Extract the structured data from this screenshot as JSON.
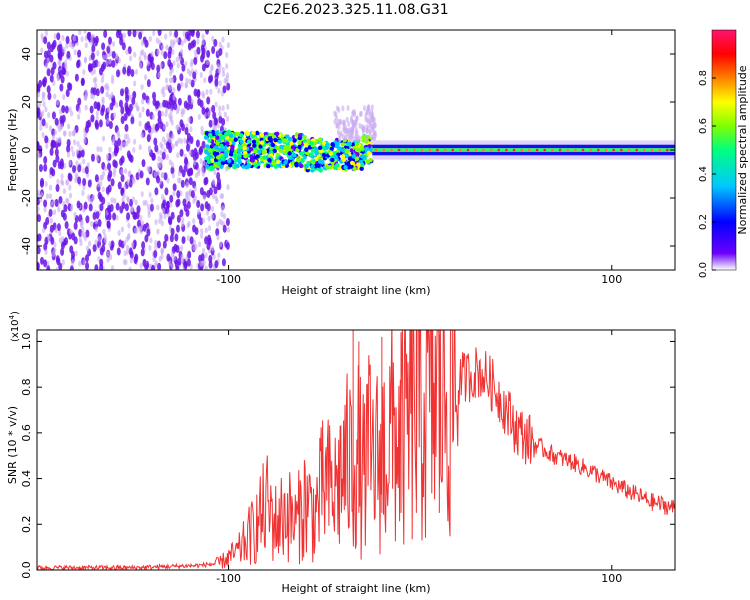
{
  "figure_title": "C2E6.2023.325.11.08.G31",
  "chart_data": [
    {
      "type": "heatmap",
      "title": "C2E6.2023.325.11.08.G31",
      "xlabel": "Height of straight line (km)",
      "ylabel": "Frequency (Hz)",
      "xlim": [
        -200,
        133
      ],
      "ylim": [
        -50,
        50
      ],
      "x_ticks": [
        -100,
        100
      ],
      "y_ticks": [
        -40,
        -20,
        0,
        20,
        40
      ],
      "colorbar": {
        "label": "Normalized spectral amplitude",
        "range": [
          0.0,
          1.0
        ],
        "ticks": [
          0.0,
          0.2,
          0.4,
          0.6,
          0.8
        ],
        "colors": [
          "#ffffff",
          "#6a00ff",
          "#0000ff",
          "#00c8ff",
          "#00ff80",
          "#80ff00",
          "#ffff00",
          "#ff8000",
          "#ff0000",
          "#ff1470"
        ]
      },
      "features": {
        "noise_region_x": [
          -200,
          -105
        ],
        "signal_start_x": -112,
        "signal_center_hz": 0,
        "scattered_signal_x": [
          -112,
          -25
        ],
        "strong_narrow_line_x": [
          -25,
          133
        ]
      }
    },
    {
      "type": "line",
      "xlabel": "Height of straight line (km)",
      "ylabel": "SNR (10 * v/v)",
      "y_multiplier": "(x10",
      "y_multiplier_exp": "4",
      "xlim": [
        -200,
        133
      ],
      "ylim": [
        0.0,
        1.05
      ],
      "x_ticks": [
        -100,
        100
      ],
      "y_ticks": [
        "0.0",
        "0.2",
        "0.4",
        "0.6",
        "0.8",
        "1.0"
      ],
      "color": "#f03232",
      "series": [
        {
          "name": "SNR",
          "x": [
            -200,
            -150,
            -115,
            -105,
            -95,
            -90,
            -85,
            -80,
            -75,
            -70,
            -65,
            -60,
            -55,
            -50,
            -45,
            -40,
            -35,
            -32,
            -30,
            -27,
            -25,
            -20,
            -15,
            -10,
            -5,
            0,
            5,
            10,
            15,
            20,
            25,
            30,
            35,
            40,
            45,
            50,
            55,
            60,
            70,
            80,
            90,
            100,
            110,
            120,
            133
          ],
          "values": [
            0.01,
            0.01,
            0.02,
            0.03,
            0.08,
            0.14,
            0.2,
            0.28,
            0.2,
            0.26,
            0.2,
            0.3,
            0.24,
            0.38,
            0.33,
            0.45,
            0.47,
            0.5,
            0.4,
            0.52,
            0.46,
            0.5,
            0.6,
            0.57,
            0.66,
            0.7,
            0.72,
            0.76,
            0.8,
            0.83,
            0.85,
            0.87,
            0.84,
            0.78,
            0.7,
            0.62,
            0.58,
            0.55,
            0.5,
            0.47,
            0.43,
            0.38,
            0.34,
            0.3,
            0.27
          ],
          "spikes": [
            {
              "x": -35,
              "y": 1.05
            },
            {
              "x": -32,
              "y": 1.0
            },
            {
              "x": -20,
              "y": 1.02
            },
            {
              "x": -10,
              "y": 1.04
            },
            {
              "x": -2,
              "y": 1.05
            },
            {
              "x": 10,
              "y": 1.03
            }
          ]
        }
      ]
    }
  ]
}
